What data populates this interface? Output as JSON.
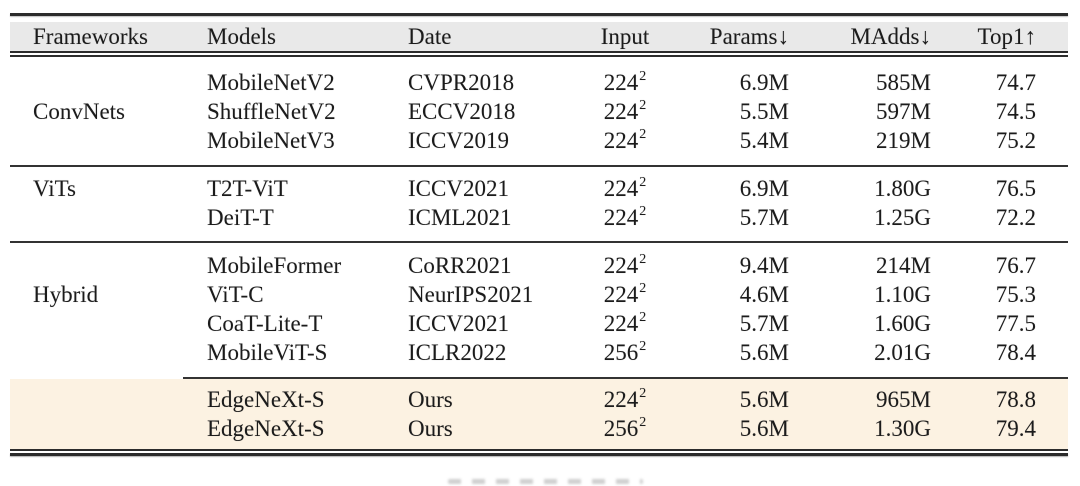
{
  "table": {
    "columns": [
      {
        "label": "Frameworks",
        "align": "left"
      },
      {
        "label": "Models",
        "align": "left"
      },
      {
        "label": "Date",
        "align": "left"
      },
      {
        "label": "Input",
        "align": "center"
      },
      {
        "label": "Params↓",
        "align": "right"
      },
      {
        "label": "MAdds↓",
        "align": "right"
      },
      {
        "label": "Top1↑",
        "align": "right"
      }
    ],
    "groups": [
      {
        "framework": "ConvNets",
        "label_row": 1,
        "highlight": false,
        "partial_rule_above": false,
        "rows": [
          {
            "model": "MobileNetV2",
            "date": "CVPR2018",
            "input": "224",
            "input_sup": "2",
            "params": "6.9M",
            "madds": "585M",
            "top1": "74.7"
          },
          {
            "model": "ShuffleNetV2",
            "date": "ECCV2018",
            "input": "224",
            "input_sup": "2",
            "params": "5.5M",
            "madds": "597M",
            "top1": "74.5"
          },
          {
            "model": "MobileNetV3",
            "date": "ICCV2019",
            "input": "224",
            "input_sup": "2",
            "params": "5.4M",
            "madds": "219M",
            "top1": "75.2"
          }
        ]
      },
      {
        "framework": "ViTs",
        "label_row": 0,
        "highlight": false,
        "partial_rule_above": false,
        "rows": [
          {
            "model": "T2T-ViT",
            "date": "ICCV2021",
            "input": "224",
            "input_sup": "2",
            "params": "6.9M",
            "madds": "1.80G",
            "top1": "76.5"
          },
          {
            "model": "DeiT-T",
            "date": "ICML2021",
            "input": "224",
            "input_sup": "2",
            "params": "5.7M",
            "madds": "1.25G",
            "top1": "72.2"
          }
        ]
      },
      {
        "framework": "Hybrid",
        "label_row": 1,
        "highlight": false,
        "partial_rule_above": false,
        "rows": [
          {
            "model": "MobileFormer",
            "date": "CoRR2021",
            "input": "224",
            "input_sup": "2",
            "params": "9.4M",
            "madds": "214M",
            "top1": "76.7"
          },
          {
            "model": "ViT-C",
            "date": "NeurIPS2021",
            "input": "224",
            "input_sup": "2",
            "params": "4.6M",
            "madds": "1.10G",
            "top1": "75.3"
          },
          {
            "model": "CoaT-Lite-T",
            "date": "ICCV2021",
            "input": "224",
            "input_sup": "2",
            "params": "5.7M",
            "madds": "1.60G",
            "top1": "77.5"
          },
          {
            "model": "MobileViT-S",
            "date": "ICLR2022",
            "input": "256",
            "input_sup": "2",
            "params": "5.6M",
            "madds": "2.01G",
            "top1": "78.4"
          }
        ]
      },
      {
        "framework": "",
        "label_row": -1,
        "highlight": true,
        "partial_rule_above": true,
        "rows": [
          {
            "model": "EdgeNeXt-S",
            "date": "Ours",
            "input": "224",
            "input_sup": "2",
            "params": "5.6M",
            "madds": "965M",
            "top1": "78.8"
          },
          {
            "model": "EdgeNeXt-S",
            "date": "Ours",
            "input": "256",
            "input_sup": "2",
            "params": "5.6M",
            "madds": "1.30G",
            "top1": "79.4"
          }
        ]
      }
    ],
    "colors": {
      "header_bg": "#e9e9e9",
      "highlight_bg": "#fcf2e2",
      "rule": "#2c2c2c",
      "text": "#1b1b1b"
    }
  }
}
